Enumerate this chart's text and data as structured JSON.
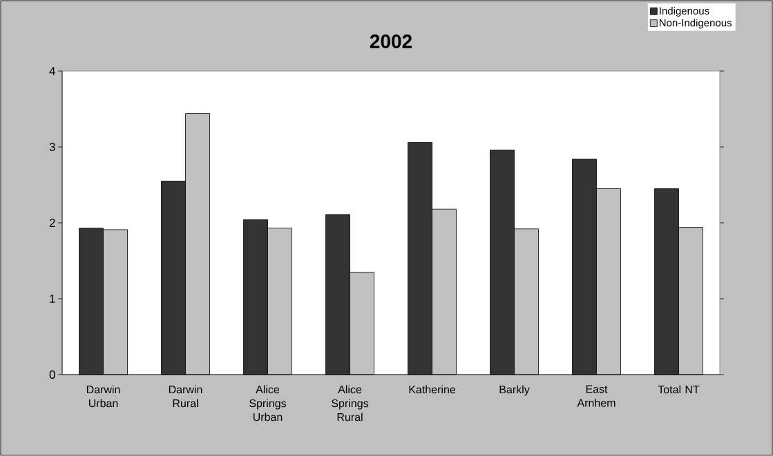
{
  "chart_data": {
    "type": "bar",
    "title": "2002",
    "categories": [
      "Darwin Urban",
      "Darwin Rural",
      "Alice Springs Urban",
      "Alice Springs Rural",
      "Katherine",
      "Barkly",
      "East Arnhem",
      "Total NT"
    ],
    "series": [
      {
        "name": "Indigenous",
        "color": "#333333",
        "values": [
          1.93,
          2.55,
          2.04,
          2.11,
          3.06,
          2.96,
          2.84,
          2.45
        ]
      },
      {
        "name": "Non-Indigenous",
        "color": "#c0c0c0",
        "values": [
          1.91,
          3.44,
          1.93,
          1.35,
          2.18,
          1.92,
          2.45,
          1.94
        ]
      }
    ],
    "ylim": [
      0,
      4
    ],
    "yticks": [
      0,
      1,
      2,
      3,
      4
    ],
    "legend": "top right"
  }
}
